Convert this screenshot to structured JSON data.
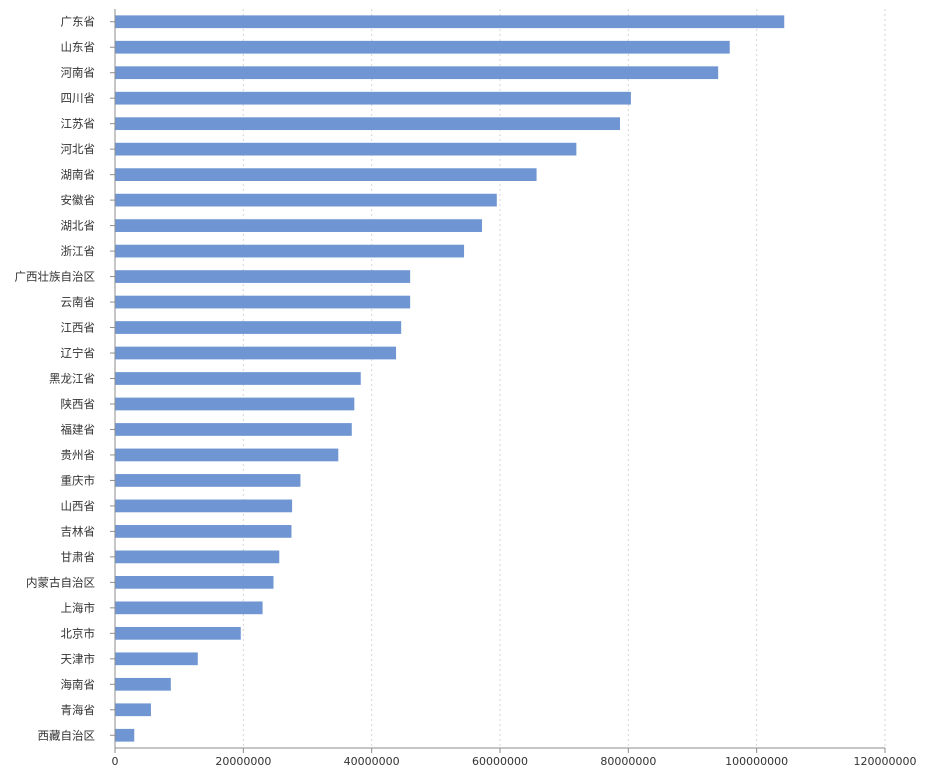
{
  "chart_data": {
    "type": "bar",
    "orientation": "horizontal",
    "title": "",
    "xlabel": "",
    "ylabel": "",
    "xlim": [
      0,
      120000000
    ],
    "x_ticks": [
      0,
      20000000,
      40000000,
      60000000,
      80000000,
      100000000,
      120000000
    ],
    "x_tick_labels": [
      "0",
      "20000000",
      "40000000",
      "60000000",
      "80000000",
      "100000000",
      "120000000"
    ],
    "grid": "vertical dashed",
    "bar_color": "#6f96d3",
    "categories": [
      "广东省",
      "山东省",
      "河南省",
      "四川省",
      "江苏省",
      "河北省",
      "湖南省",
      "安徽省",
      "湖北省",
      "浙江省",
      "广西壮族自治区",
      "云南省",
      "江西省",
      "辽宁省",
      "黑龙江省",
      "陕西省",
      "福建省",
      "贵州省",
      "重庆市",
      "山西省",
      "吉林省",
      "甘肃省",
      "内蒙古自治区",
      "上海市",
      "北京市",
      "天津市",
      "海南省",
      "青海省",
      "西藏自治区"
    ],
    "values": [
      104300000,
      95800000,
      94000000,
      80400000,
      78700000,
      71900000,
      65700000,
      59500000,
      57200000,
      54400000,
      46000000,
      46000000,
      44600000,
      43800000,
      38300000,
      37300000,
      36900000,
      34800000,
      28900000,
      27600000,
      27500000,
      25600000,
      24700000,
      23000000,
      19600000,
      12900000,
      8700000,
      5600000,
      3000000
    ]
  }
}
